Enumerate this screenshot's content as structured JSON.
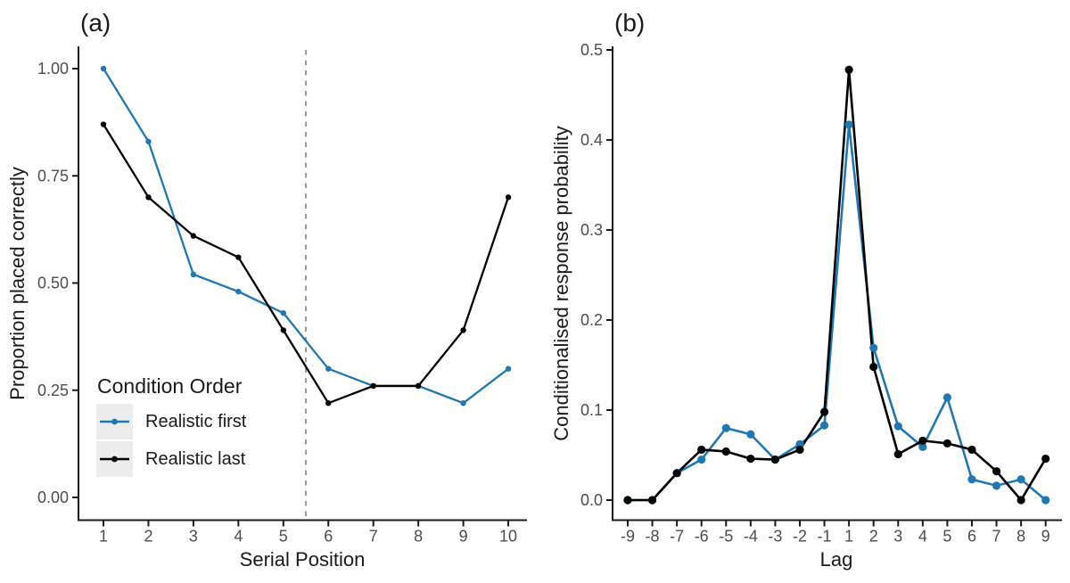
{
  "chart_data": [
    {
      "type": "line",
      "panel_label": "(a)",
      "xlabel": "Serial Position",
      "ylabel": "Proportion placed correctly",
      "x": [
        1,
        2,
        3,
        4,
        5,
        6,
        7,
        8,
        9,
        10
      ],
      "ylim": [
        0.0,
        1.0
      ],
      "yticks": [
        "0.00",
        "0.25",
        "0.50",
        "0.75",
        "1.00"
      ],
      "grid": false,
      "vline_x": 5.5,
      "vline_style": "dashed-gray",
      "legend": {
        "title": "Condition Order",
        "position": "inside bottom-left",
        "items": [
          {
            "label": "Realistic first",
            "color": "#1F78B4"
          },
          {
            "label": "Realistic last",
            "color": "#000000"
          }
        ]
      },
      "series": [
        {
          "name": "Realistic first",
          "color": "#1F78B4",
          "values": [
            1.0,
            0.83,
            0.52,
            0.48,
            0.43,
            0.3,
            0.26,
            0.26,
            0.22,
            0.3
          ]
        },
        {
          "name": "Realistic last",
          "color": "#000000",
          "values": [
            0.87,
            0.7,
            0.61,
            0.56,
            0.39,
            0.22,
            0.26,
            0.26,
            0.39,
            0.7
          ]
        }
      ]
    },
    {
      "type": "line",
      "panel_label": "(b)",
      "xlabel": "Lag",
      "ylabel": "Conditionalised response probability",
      "x": [
        -9,
        -8,
        -7,
        -6,
        -5,
        -4,
        -3,
        -2,
        -1,
        1,
        2,
        3,
        4,
        5,
        6,
        7,
        8,
        9
      ],
      "ylim": [
        0.0,
        0.5
      ],
      "yticks": [
        "0.0",
        "0.1",
        "0.2",
        "0.3",
        "0.4",
        "0.5"
      ],
      "grid": false,
      "series": [
        {
          "name": "Realistic first",
          "color": "#1F78B4",
          "values": [
            0.0,
            0.0,
            0.03,
            0.045,
            0.08,
            0.073,
            0.045,
            0.062,
            0.083,
            0.417,
            0.169,
            0.082,
            0.059,
            0.114,
            0.023,
            0.016,
            0.023,
            0.0
          ]
        },
        {
          "name": "Realistic last",
          "color": "#000000",
          "values": [
            0.0,
            0.0,
            0.03,
            0.056,
            0.054,
            0.046,
            0.045,
            0.056,
            0.098,
            0.478,
            0.148,
            0.051,
            0.066,
            0.063,
            0.056,
            0.032,
            0.0,
            0.046
          ]
        }
      ]
    }
  ],
  "style": {
    "axis_color": "#1a1a1a",
    "tick_label_color": "#4d4d4d",
    "dashed_line_color": "#999999",
    "legend_key_bg": "#ECECEC"
  }
}
